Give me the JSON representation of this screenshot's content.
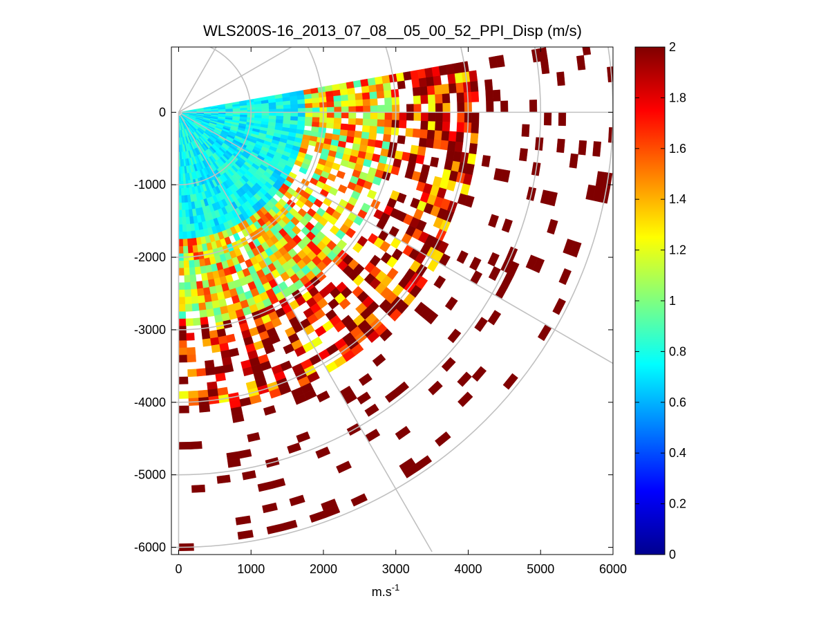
{
  "chart_data": {
    "type": "heatmap",
    "subtype": "polar-ppi-sector",
    "title": "WLS200S-16_2013_07_08__05_00_52_PPI_Disp (m/s)",
    "xlabel": "m.s",
    "xlabel_superscript": "-1",
    "ylabel": "",
    "xlim": [
      -100,
      6000
    ],
    "ylim": [
      -6100,
      900
    ],
    "x_ticks": [
      0,
      1000,
      2000,
      3000,
      4000,
      5000,
      6000
    ],
    "x_tick_labels": [
      "0",
      "1000",
      "2000",
      "3000",
      "4000",
      "5000",
      "6000"
    ],
    "y_ticks": [
      0,
      -1000,
      -2000,
      -3000,
      -4000,
      -5000,
      -6000
    ],
    "y_tick_labels": [
      "0",
      "-1000",
      "-2000",
      "-3000",
      "-4000",
      "-5000",
      "-6000"
    ],
    "grid": {
      "range_rings": [
        1000,
        2000,
        3000,
        4000,
        5000,
        6000
      ],
      "azimuth_lines_deg": [
        -90,
        -60,
        -30,
        0,
        30,
        60
      ]
    },
    "sector": {
      "origin": [
        0,
        0
      ],
      "azimuth_from_deg": -90,
      "azimuth_to_deg": 10,
      "max_range": 6000
    },
    "colorbar": {
      "colormap": "jet",
      "clim": [
        0,
        2
      ],
      "ticks": [
        0,
        0.2,
        0.4,
        0.6,
        0.8,
        1,
        1.2,
        1.4,
        1.6,
        1.8,
        2
      ],
      "tick_labels": [
        "0",
        "0.2",
        "0.4",
        "0.6",
        "0.8",
        "1",
        "1.2",
        "1.4",
        "1.6",
        "1.8",
        "2"
      ]
    },
    "field_description": "Wind-speed dispersion (m/s): 0.6-0.9 near the lidar, increasing with range; saturated at 2 (dark red) beyond roughly 3000-4000 m; sparse scattered cells at the far ranges."
  }
}
